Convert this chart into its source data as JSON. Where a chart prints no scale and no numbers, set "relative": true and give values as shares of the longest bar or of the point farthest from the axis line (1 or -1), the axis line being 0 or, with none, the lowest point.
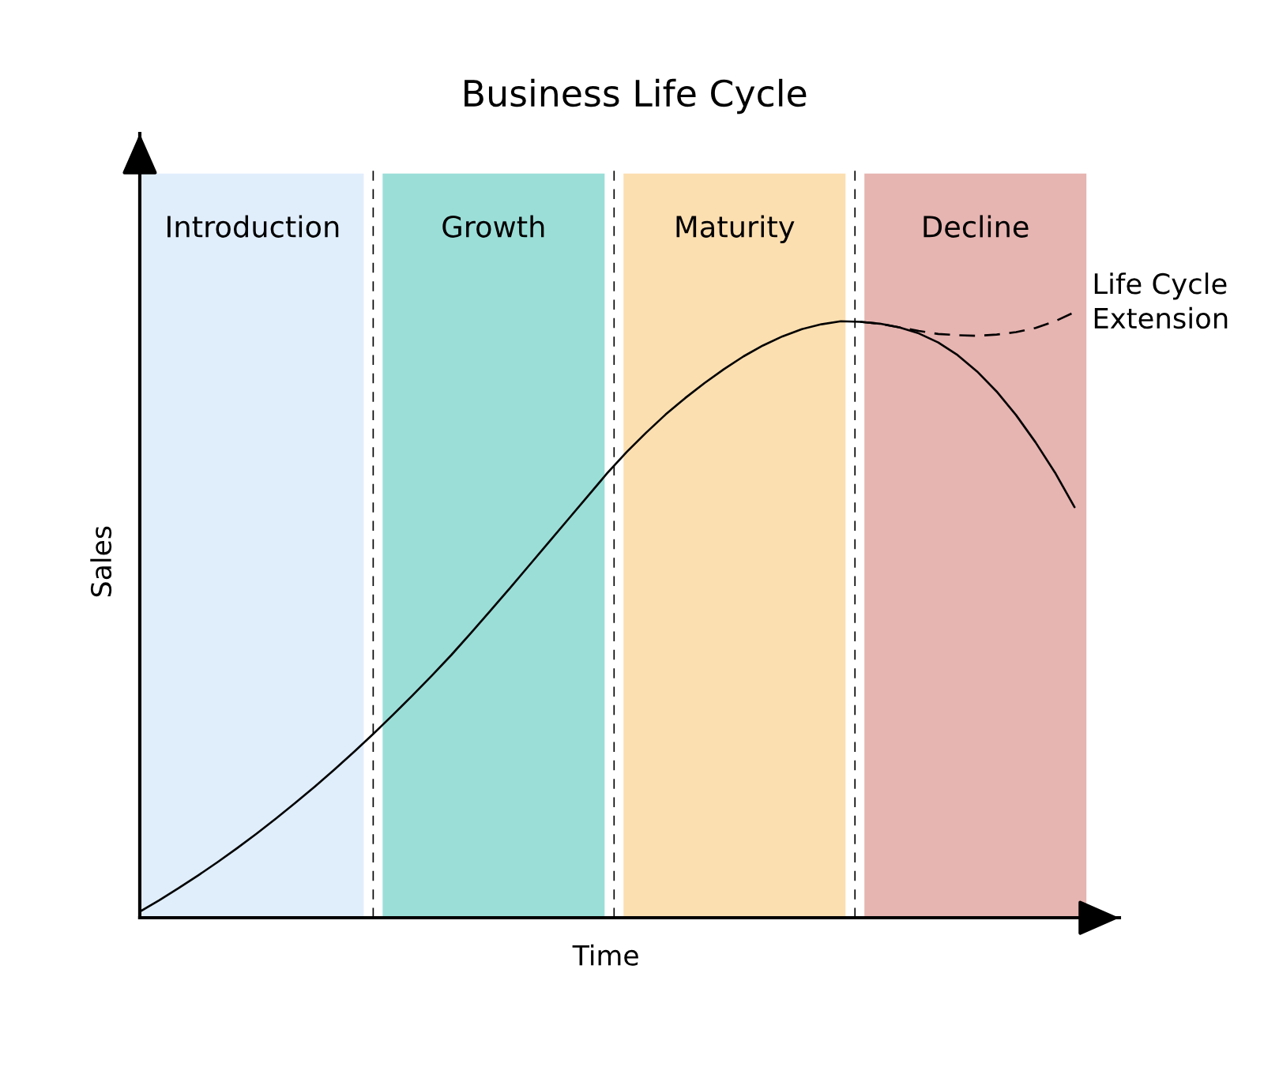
{
  "chart_data": {
    "type": "line",
    "title": "Business Life Cycle",
    "xlabel": "Time",
    "ylabel": "Sales",
    "relative": true,
    "annotations": [
      "Introduction",
      "Growth",
      "Maturity",
      "Decline"
    ],
    "categories": [
      null,
      null,
      null,
      null,
      null,
      null,
      null,
      null,
      null,
      null,
      null,
      null,
      null,
      null,
      null,
      null,
      null,
      null,
      null,
      null,
      null,
      null,
      null,
      null,
      null,
      null,
      null,
      null,
      null,
      null,
      null,
      null,
      null,
      null,
      null,
      null,
      null,
      null,
      null,
      null,
      null,
      null,
      null,
      null,
      null,
      null,
      null,
      null,
      null
    ],
    "series": [
      {
        "color": "#000000",
        "line_style": "solid",
        "values": [
          0.01,
          0.029,
          0.049,
          0.07,
          0.092,
          0.115,
          0.139,
          0.164,
          0.19,
          0.217,
          0.245,
          0.274,
          0.304,
          0.335,
          0.367,
          0.4,
          0.434,
          0.47,
          0.507,
          0.544,
          0.582,
          0.62,
          0.658,
          0.696,
          0.734,
          0.769,
          0.801,
          0.831,
          0.858,
          0.883,
          0.906,
          0.927,
          0.945,
          0.96,
          0.972,
          0.98,
          0.985,
          0.984,
          0.981,
          0.975,
          0.965,
          0.95,
          0.929,
          0.902,
          0.869,
          0.83,
          0.785,
          0.735,
          0.678
        ]
      },
      {
        "name": "Life Cycle Extension",
        "color": "#000000",
        "line_style": "dashed",
        "values": [
          null,
          null,
          null,
          null,
          null,
          null,
          null,
          null,
          null,
          null,
          null,
          null,
          null,
          null,
          null,
          null,
          null,
          null,
          null,
          null,
          null,
          null,
          null,
          null,
          null,
          null,
          null,
          null,
          null,
          null,
          null,
          null,
          null,
          null,
          null,
          null,
          null,
          0.984,
          0.981,
          0.975,
          0.969,
          0.964,
          0.962,
          0.961,
          0.963,
          0.967,
          0.974,
          0.985,
          1
        ]
      }
    ]
  }
}
